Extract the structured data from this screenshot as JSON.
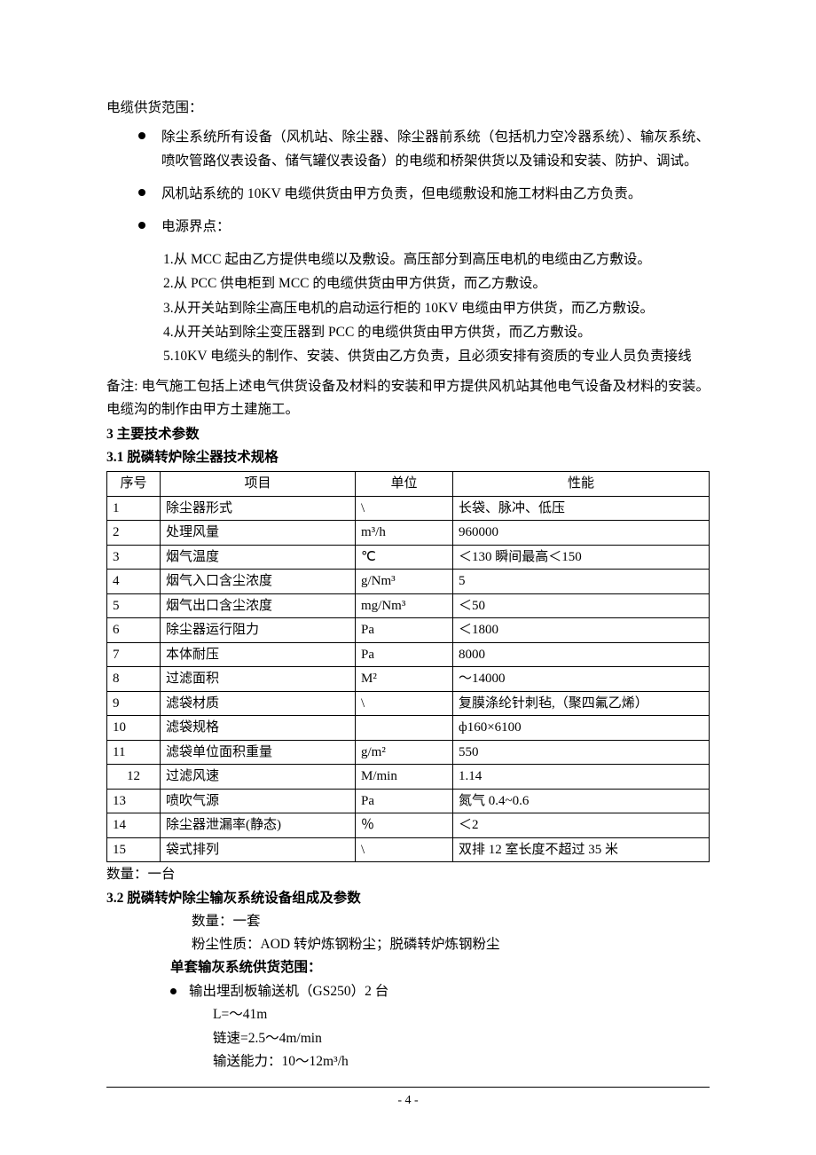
{
  "cable_heading": "电缆供货范围：",
  "bullets": {
    "b1": "除尘系统所有设备（风机站、除尘器、除尘器前系统（包括机力空冷器系统）、输灰系统、喷吹管路仪表设备、储气罐仪表设备）的电缆和桥架供货以及铺设和安装、防护、调试。",
    "b2": "风机站系统的 10KV 电缆供货由甲方负责，但电缆敷设和施工材料由乙方负责。",
    "b3": "电源界点："
  },
  "sub": {
    "s1": "1.从 MCC 起由乙方提供电缆以及敷设。高压部分到高压电机的电缆由乙方敷设。",
    "s2": "2.从 PCC 供电柜到 MCC 的电缆供货由甲方供货，而乙方敷设。",
    "s3": "3.从开关站到除尘高压电机的启动运行柜的 10KV 电缆由甲方供货，而乙方敷设。",
    "s4": "4.从开关站到除尘变压器到 PCC 的电缆供货由甲方供货，而乙方敷设。",
    "s5": "5.10KV 电缆头的制作、安装、供货由乙方负责，且必须安排有资质的专业人员负责接线"
  },
  "note": "备注: 电气施工包括上述电气供货设备及材料的安装和甲方提供风机站其他电气设备及材料的安装。电缆沟的制作由甲方土建施工。",
  "sec3": "3 主要技术参数",
  "sec31": "3.1 脱磷转炉除尘器技术规格",
  "table": {
    "headers": {
      "h0": "序号",
      "h1": "项目",
      "h2": "单位",
      "h3": "性能"
    },
    "rows": [
      {
        "c0": "1",
        "c1": "除尘器形式",
        "c2": "\\",
        "c3": "长袋、脉冲、低压"
      },
      {
        "c0": "2",
        "c1": "处理风量",
        "c2": "m³/h",
        "c3": "960000"
      },
      {
        "c0": "3",
        "c1": "烟气温度",
        "c2": "℃",
        "c3": "＜130  瞬间最高＜150"
      },
      {
        "c0": "4",
        "c1": "烟气入口含尘浓度",
        "c2": "g/Nm³",
        "c3": "5"
      },
      {
        "c0": "5",
        "c1": "烟气出口含尘浓度",
        "c2": "mg/Nm³",
        "c3": "＜50"
      },
      {
        "c0": "6",
        "c1": "除尘器运行阻力",
        "c2": "Pa",
        "c3": "＜1800"
      },
      {
        "c0": "7",
        "c1": "本体耐压",
        "c2": "Pa",
        "c3": "8000"
      },
      {
        "c0": "8",
        "c1": "过滤面积",
        "c2": "M²",
        "c3": "～14000"
      },
      {
        "c0": "9",
        "c1": "滤袋材质",
        "c2": "\\",
        "c3": "复膜涤纶针刺毡,（聚四氟乙烯）"
      },
      {
        "c0": "10",
        "c1": "滤袋规格",
        "c2": "",
        "c3": "ф160×6100"
      },
      {
        "c0": "11",
        "c1": "滤袋单位面积重量",
        "c2": "g/m²",
        "c3": "550"
      },
      {
        "c0": "12",
        "c1": "过滤风速",
        "c2": "M/min",
        "c3": "1.14"
      },
      {
        "c0": "13",
        "c1": "喷吹气源",
        "c2": "Pa",
        "c3": "氮气        0.4~0.6"
      },
      {
        "c0": "14",
        "c1": "除尘器泄漏率(静态)",
        "c2": "％",
        "c3": "＜2"
      },
      {
        "c0": "15",
        "c1": "袋式排列",
        "c2": "\\",
        "c3": "双排 12 室长度不超过 35 米"
      }
    ]
  },
  "qty_note": "数量：一台",
  "sec32": "3.2  脱磷转炉除尘输灰系统设备组成及参数",
  "ash": {
    "qty": "数量：一套",
    "material": "粉尘性质：AOD 转炉炼钢粉尘；脱磷转炉炼钢粉尘",
    "scope": "单套输灰系统供货范围：",
    "item1": "输出埋刮板输送机（GS250）2 台",
    "l": "L=～41m",
    "speed": "链速=2.5～4m/min",
    "capacity": "输送能力：10～12m³/h"
  },
  "page_number": "- 4 -"
}
